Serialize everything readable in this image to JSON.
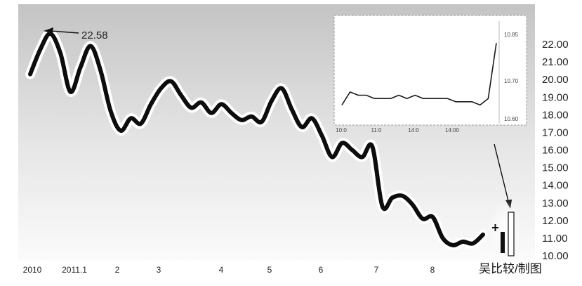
{
  "chart_data": [
    {
      "type": "line",
      "title": "",
      "xlabel": "",
      "ylabel": "",
      "ylim": [
        10.0,
        22.0
      ],
      "x_tick_labels": [
        "2010",
        "2011.1",
        "2",
        "3",
        "4",
        "5",
        "6",
        "7",
        "8"
      ],
      "y_tick_labels": [
        "22.00",
        "21.00",
        "20.00",
        "19.00",
        "18.00",
        "17.00",
        "16.00",
        "15.00",
        "14.00",
        "13.00",
        "12.00",
        "11.00",
        "10.00"
      ],
      "grid": false,
      "series": [
        {
          "values": [
            20.3,
            21.7,
            22.6,
            21.5,
            19.3,
            20.7,
            21.9,
            20.5,
            18.2,
            17.1,
            17.8,
            17.5,
            18.6,
            19.5,
            19.9,
            19.1,
            18.4,
            18.7,
            18.1,
            18.6,
            18.1,
            17.7,
            17.9,
            17.6,
            18.8,
            19.5,
            18.3,
            17.3,
            17.8,
            16.8,
            15.6,
            16.4,
            16.0,
            15.6,
            16.2,
            12.8,
            13.3,
            13.4,
            12.9,
            12.1,
            12.2,
            11.0,
            10.6,
            10.8,
            10.7,
            11.2
          ]
        }
      ],
      "annotations": [
        {
          "text": "22.58"
        }
      ]
    },
    {
      "type": "line",
      "x_tick_labels": [
        "10:0",
        "11:0",
        "14:0",
        "14:00"
      ],
      "y_tick_labels": [
        "10.85",
        "10.70",
        "10.60"
      ],
      "series": [
        {
          "values": [
            10.64,
            10.68,
            10.67,
            10.67,
            10.66,
            10.66,
            10.66,
            10.67,
            10.66,
            10.67,
            10.66,
            10.66,
            10.66,
            10.66,
            10.65,
            10.65,
            10.65,
            10.64,
            10.66,
            10.83
          ]
        }
      ]
    }
  ],
  "credit": "吴比较/制图"
}
